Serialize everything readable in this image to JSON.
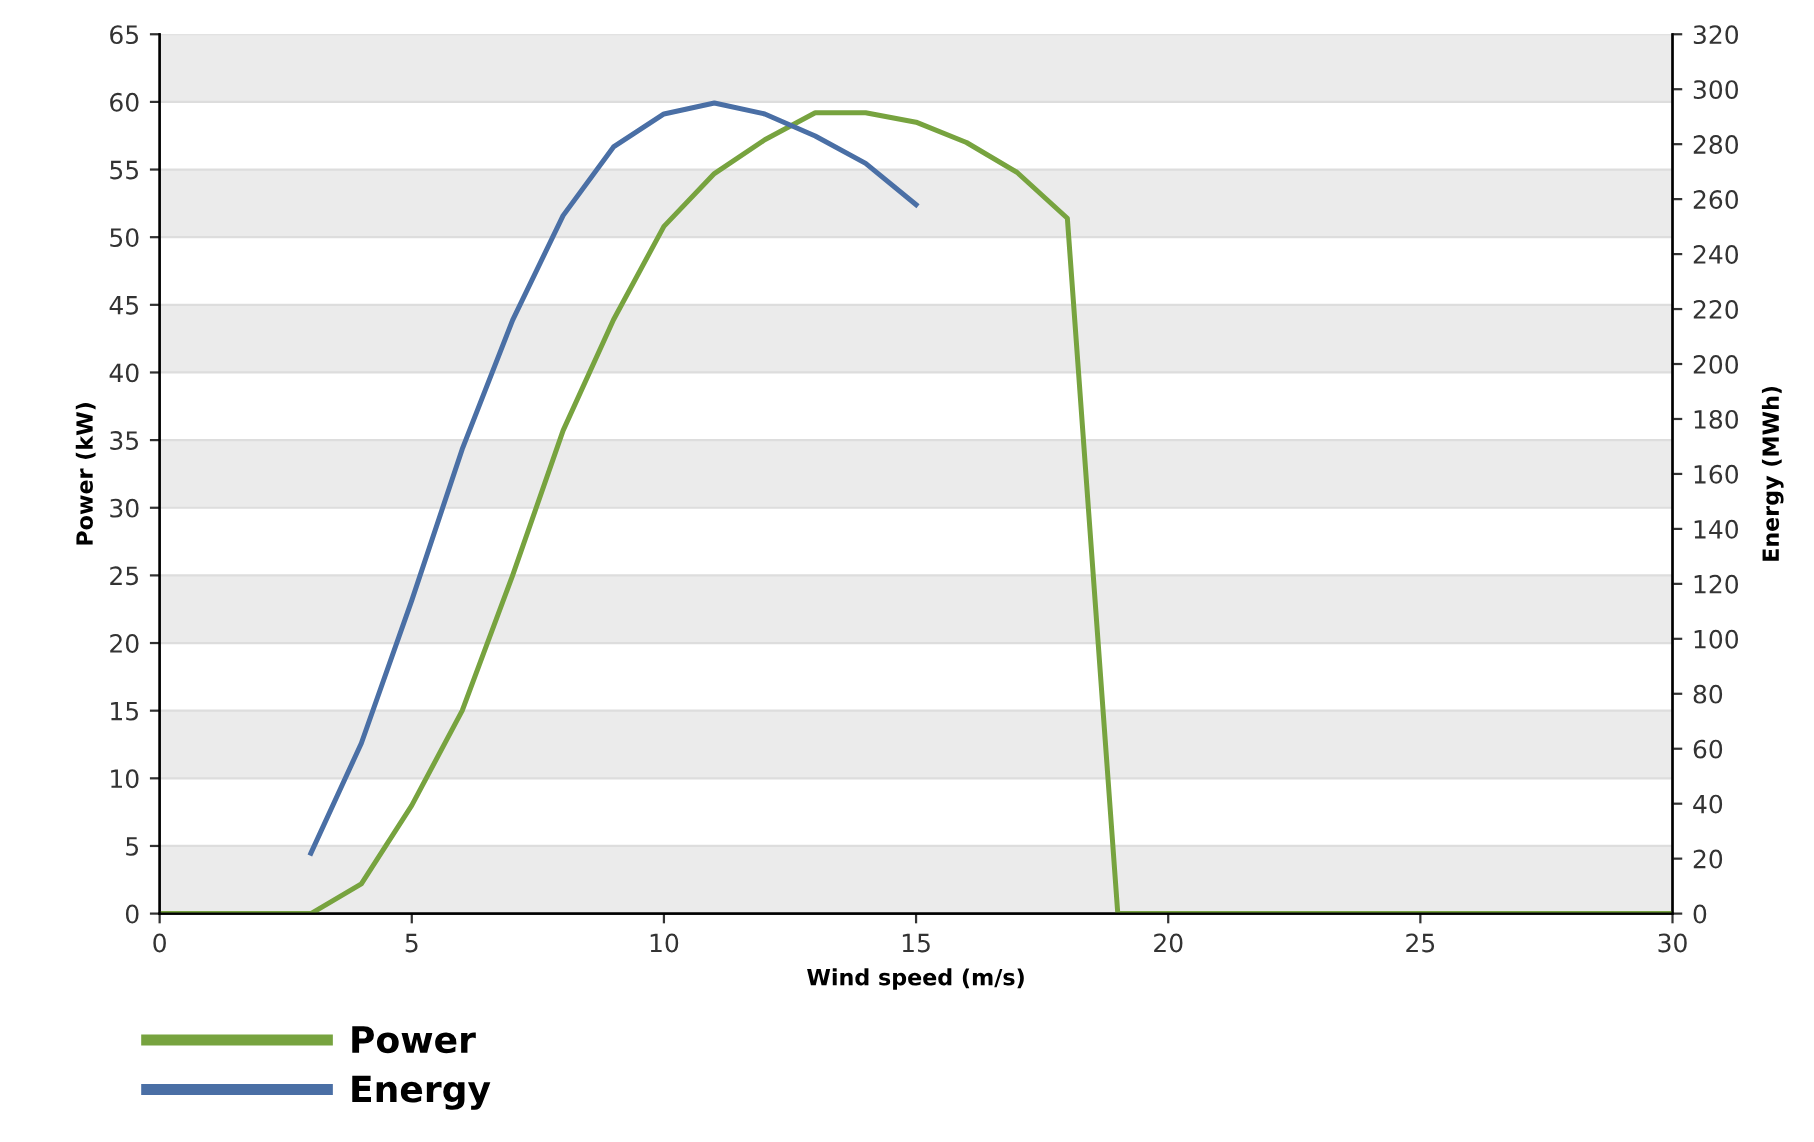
{
  "chart_data": {
    "type": "line",
    "xlabel": "Wind speed (m/s)",
    "ylabel": "Power (kW)",
    "y2label": "Energy (MWh)",
    "xlim": [
      0,
      30
    ],
    "xticks": [
      0,
      5,
      10,
      15,
      20,
      25,
      30
    ],
    "ylim": [
      0,
      65
    ],
    "yticks": [
      0,
      5,
      10,
      15,
      20,
      25,
      30,
      35,
      40,
      45,
      50,
      55,
      60,
      65
    ],
    "y2lim": [
      0,
      320
    ],
    "y2ticks": [
      0,
      20,
      40,
      60,
      80,
      100,
      120,
      140,
      160,
      180,
      200,
      220,
      240,
      260,
      280,
      300,
      320
    ],
    "grid": "y",
    "legend": "bottom left",
    "marker": "none",
    "line_style": "solid",
    "series": [
      {
        "name": "Power",
        "color": "#77a33f",
        "x": [
          0,
          1,
          2,
          3,
          4,
          5,
          6,
          7,
          8,
          9,
          10,
          11,
          12,
          13,
          14,
          15,
          16,
          17,
          18,
          19,
          20,
          21,
          22,
          23,
          24,
          25,
          26,
          27,
          28,
          29,
          30
        ],
        "values": [
          0,
          0,
          0,
          0,
          2.2,
          8,
          15,
          25,
          35.7,
          43.9,
          50.8,
          54.7,
          57.2,
          59.2,
          59.2,
          58.5,
          57,
          54.8,
          51.4,
          0,
          0,
          0,
          0,
          0,
          0,
          0,
          0,
          0,
          0,
          0,
          0
        ]
      },
      {
        "name": "Energy",
        "color": "#4a6fa5",
        "axis": "y2",
        "x": [
          3,
          4,
          5,
          6,
          7,
          8,
          9,
          10,
          11,
          12,
          13,
          14,
          15
        ],
        "values": [
          22,
          62,
          114,
          169,
          216,
          254,
          279,
          291,
          295,
          291,
          283,
          273,
          258
        ]
      }
    ]
  }
}
